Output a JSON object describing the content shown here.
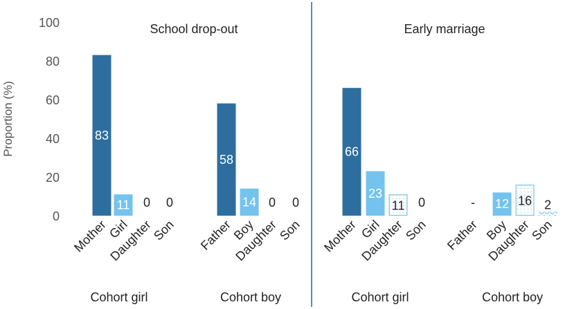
{
  "chart_data": {
    "type": "bar",
    "ylabel": "Proportion (%)",
    "ylim": [
      0,
      100
    ],
    "yticks": [
      0,
      20,
      40,
      60,
      80,
      100
    ],
    "grid": false,
    "colors": {
      "parent": "#2e6e9e",
      "child": "#74c3ee",
      "daughter_border": "#74c3ee",
      "divider": "#2e6e9e",
      "text": "#222222",
      "axis_text": "#555555"
    },
    "panels": [
      {
        "title": "School drop-out",
        "groups": [
          {
            "name": "Cohort girl",
            "bars": [
              {
                "category": "Mother",
                "value": 83,
                "label": "83",
                "style": "parent"
              },
              {
                "category": "Girl",
                "value": 11,
                "label": "11",
                "style": "child"
              },
              {
                "category": "Daughter",
                "value": 0,
                "label": "0",
                "style": "none"
              },
              {
                "category": "Son",
                "value": 0,
                "label": "0",
                "style": "none"
              }
            ]
          },
          {
            "name": "Cohort boy",
            "bars": [
              {
                "category": "Father",
                "value": 58,
                "label": "58",
                "style": "parent"
              },
              {
                "category": "Boy",
                "value": 14,
                "label": "14",
                "style": "child"
              },
              {
                "category": "Daughter",
                "value": 0,
                "label": "0",
                "style": "none"
              },
              {
                "category": "Son",
                "value": 0,
                "label": "0",
                "style": "none"
              }
            ]
          }
        ]
      },
      {
        "title": "Early marriage",
        "groups": [
          {
            "name": "Cohort girl",
            "bars": [
              {
                "category": "Mother",
                "value": 66,
                "label": "66",
                "style": "parent"
              },
              {
                "category": "Girl",
                "value": 23,
                "label": "23",
                "style": "child"
              },
              {
                "category": "Daughter",
                "value": 11,
                "label": "11",
                "style": "dotted"
              },
              {
                "category": "Son",
                "value": 0,
                "label": "0",
                "style": "none"
              }
            ]
          },
          {
            "name": "Cohort boy",
            "bars": [
              {
                "category": "Father",
                "value": null,
                "label": "-",
                "style": "none"
              },
              {
                "category": "Boy",
                "value": 12,
                "label": "12",
                "style": "child"
              },
              {
                "category": "Daughter",
                "value": 16,
                "label": "16",
                "style": "dotted"
              },
              {
                "category": "Son",
                "value": 2,
                "label": "2",
                "style": "wave"
              }
            ]
          }
        ]
      }
    ]
  }
}
